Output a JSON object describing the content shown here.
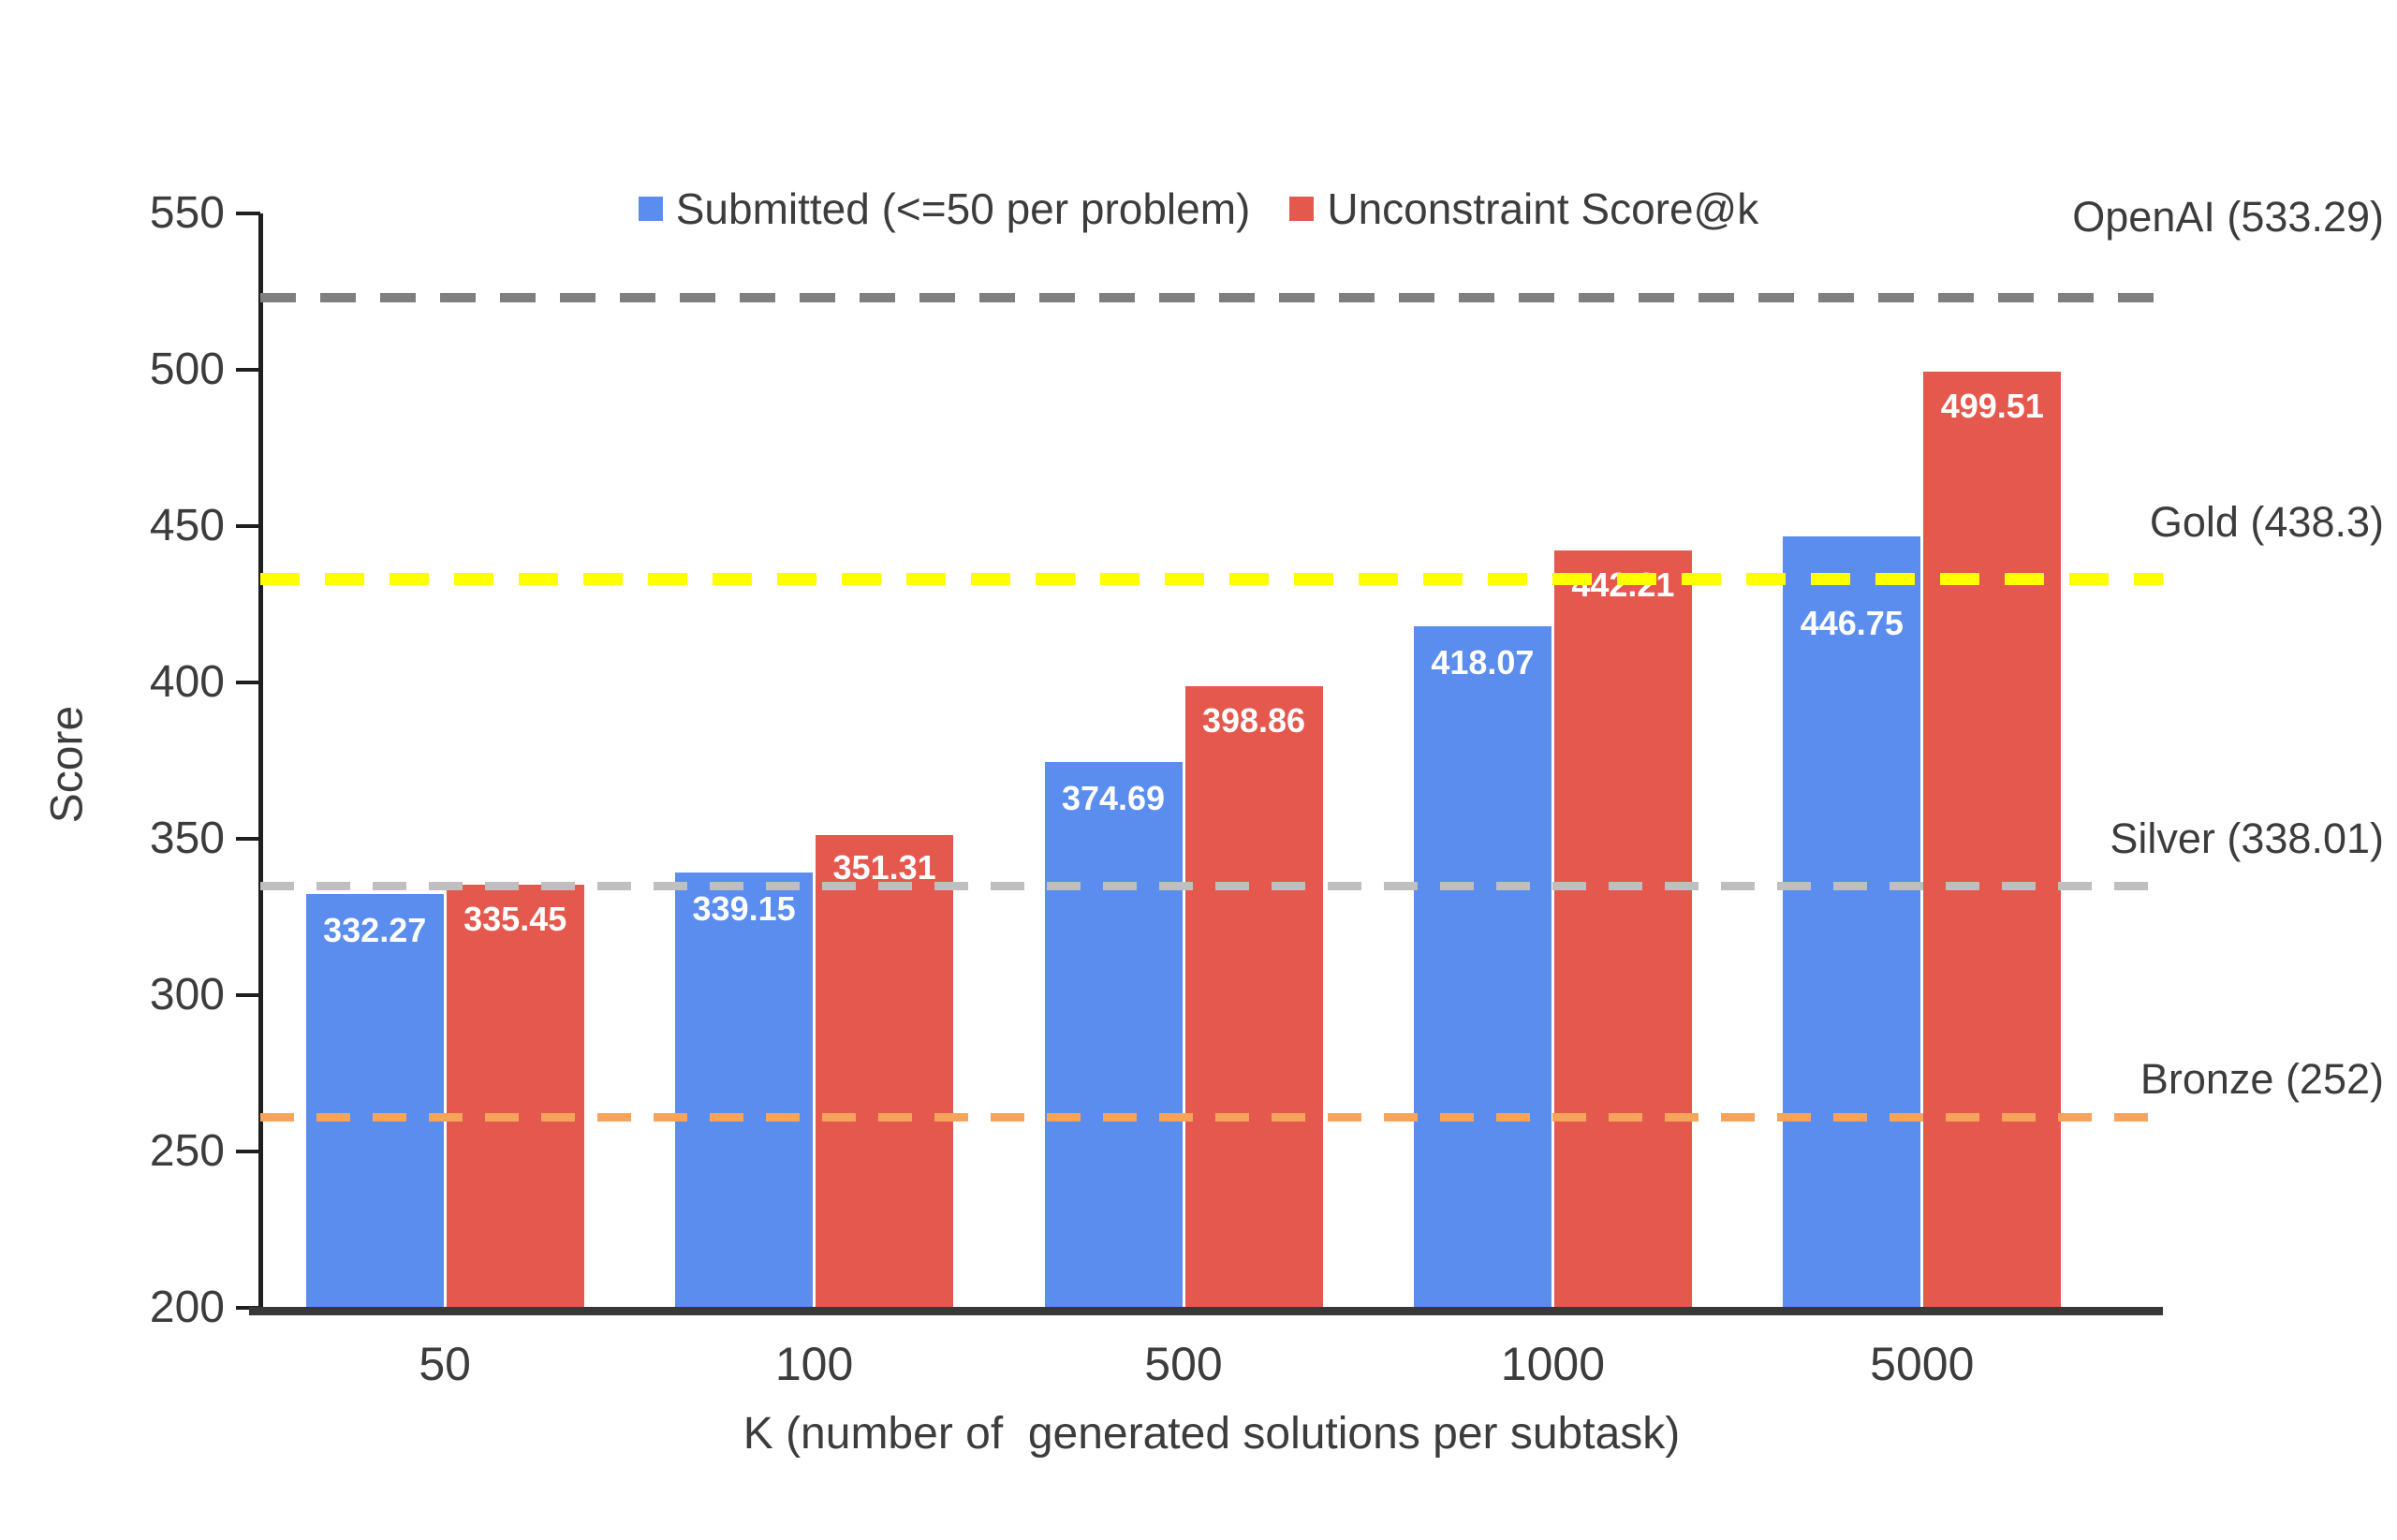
{
  "chart_data": {
    "type": "bar",
    "title": "",
    "xlabel": "K (number of  generated solutions per subtask)",
    "ylabel": "Score",
    "ylim": [
      200,
      550
    ],
    "ytick_values": [
      550,
      500,
      450,
      400,
      350,
      300,
      250,
      200
    ],
    "ytick_labels": [
      "550",
      "500",
      "450",
      "400",
      "350",
      "300",
      "250",
      "200"
    ],
    "categories": [
      "50",
      "100",
      "500",
      "1000",
      "5000"
    ],
    "series": [
      {
        "name": "Submitted (<=50 per problem)",
        "color": "#5A8DEE",
        "values": [
          332.27,
          339.15,
          374.69,
          418.07,
          446.75
        ],
        "labels": [
          "332.27",
          "339.15",
          "374.69",
          "418.07",
          "446.75"
        ],
        "label_dy": [
          20,
          20,
          20,
          20,
          74
        ]
      },
      {
        "name": "Unconstraint Score@k",
        "color": "#E5584D",
        "values": [
          335.45,
          351.31,
          398.86,
          442.21,
          499.51
        ],
        "labels": [
          "335.45",
          "351.31",
          "398.86",
          "442.21",
          "499.51"
        ],
        "label_dy": [
          18,
          16,
          18,
          18,
          18
        ]
      }
    ],
    "value_label_color": "#FFFFFF",
    "reference_lines": [
      {
        "label": "OpenAI (533.29)",
        "value": 533.29,
        "color": "#7F7F7F",
        "line_at": 523.0,
        "thickness": 10,
        "dash": [
          38,
          26
        ],
        "label_gap": 55
      },
      {
        "label": "Gold (438.3)",
        "value": 438.3,
        "color": "#FFFF00",
        "line_at": 433.0,
        "thickness": 13,
        "dash": [
          42,
          27
        ],
        "label_gap": 28
      },
      {
        "label": "Silver (338.01)",
        "value": 338.01,
        "color": "#BFBFBF",
        "line_at": 335.0,
        "thickness": 9,
        "dash": [
          36,
          24
        ],
        "label_gap": 20
      },
      {
        "label": "Bronze (252)",
        "value": 252,
        "color": "#F6A45C",
        "line_at": 261.0,
        "thickness": 9,
        "dash": [
          36,
          24
        ],
        "label_gap": 10
      }
    ],
    "legend_position": "top",
    "grid": false
  }
}
